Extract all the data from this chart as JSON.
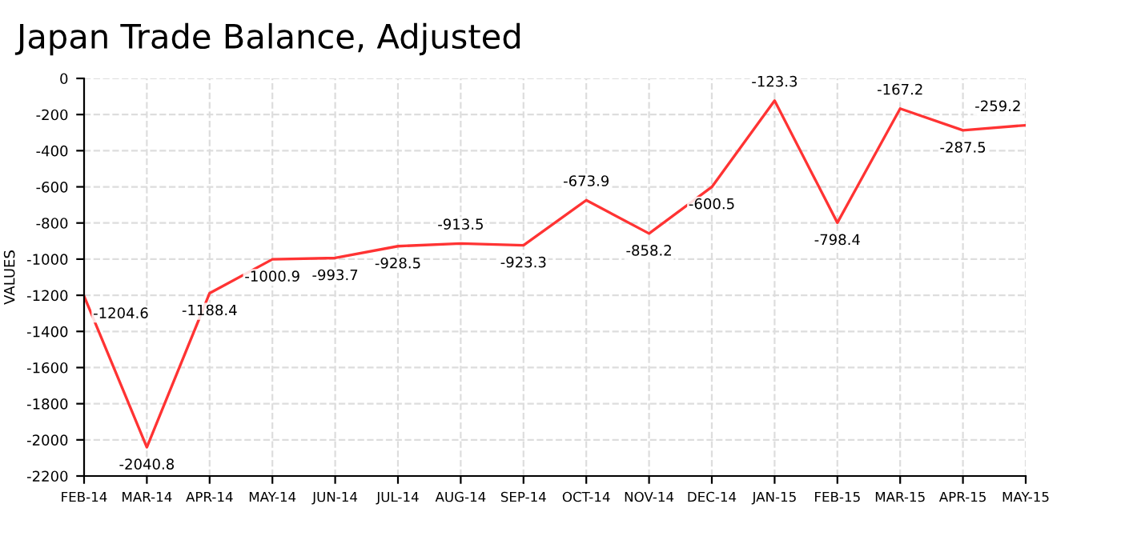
{
  "chart_data": {
    "type": "line",
    "title": "Japan Trade Balance, Adjusted",
    "ylabel": "VALUES",
    "categories": [
      "FEB-14",
      "MAR-14",
      "APR-14",
      "MAY-14",
      "JUN-14",
      "JUL-14",
      "AUG-14",
      "SEP-14",
      "OCT-14",
      "NOV-14",
      "DEC-14",
      "JAN-15",
      "FEB-15",
      "MAR-15",
      "APR-15",
      "MAY-15"
    ],
    "series": [
      {
        "color": "#ff3333",
        "values": [
          -1204.6,
          -2040.8,
          -1188.4,
          -1000.9,
          -993.7,
          -928.5,
          -913.5,
          -923.3,
          -673.9,
          -858.2,
          -600.5,
          -123.3,
          -798.4,
          -167.2,
          -287.5,
          -259.2
        ]
      }
    ],
    "ylim": [
      -2200,
      0
    ],
    "yticks": [
      -2200,
      -2000,
      -1800,
      -1600,
      -1400,
      -1200,
      -1000,
      -800,
      -600,
      -400,
      -200,
      0
    ],
    "grid": true,
    "data_labels": true,
    "marker": "none",
    "line_style": "solid",
    "legend": false
  }
}
